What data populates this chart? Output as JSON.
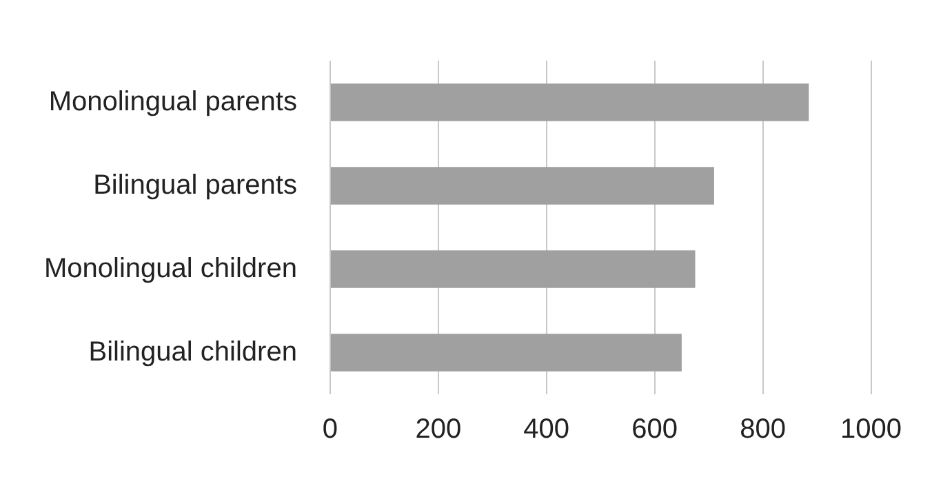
{
  "chart_data": {
    "type": "bar",
    "orientation": "horizontal",
    "categories": [
      "Monolingual parents",
      "Bilingual parents",
      "Monolingual children",
      "Bilingual children"
    ],
    "values": [
      885,
      710,
      675,
      650
    ],
    "color": "#a0a0a0",
    "xlim": [
      0,
      1000
    ],
    "xticks": [
      0,
      200,
      400,
      600,
      800,
      1000
    ],
    "grid": "x",
    "legend": false
  }
}
